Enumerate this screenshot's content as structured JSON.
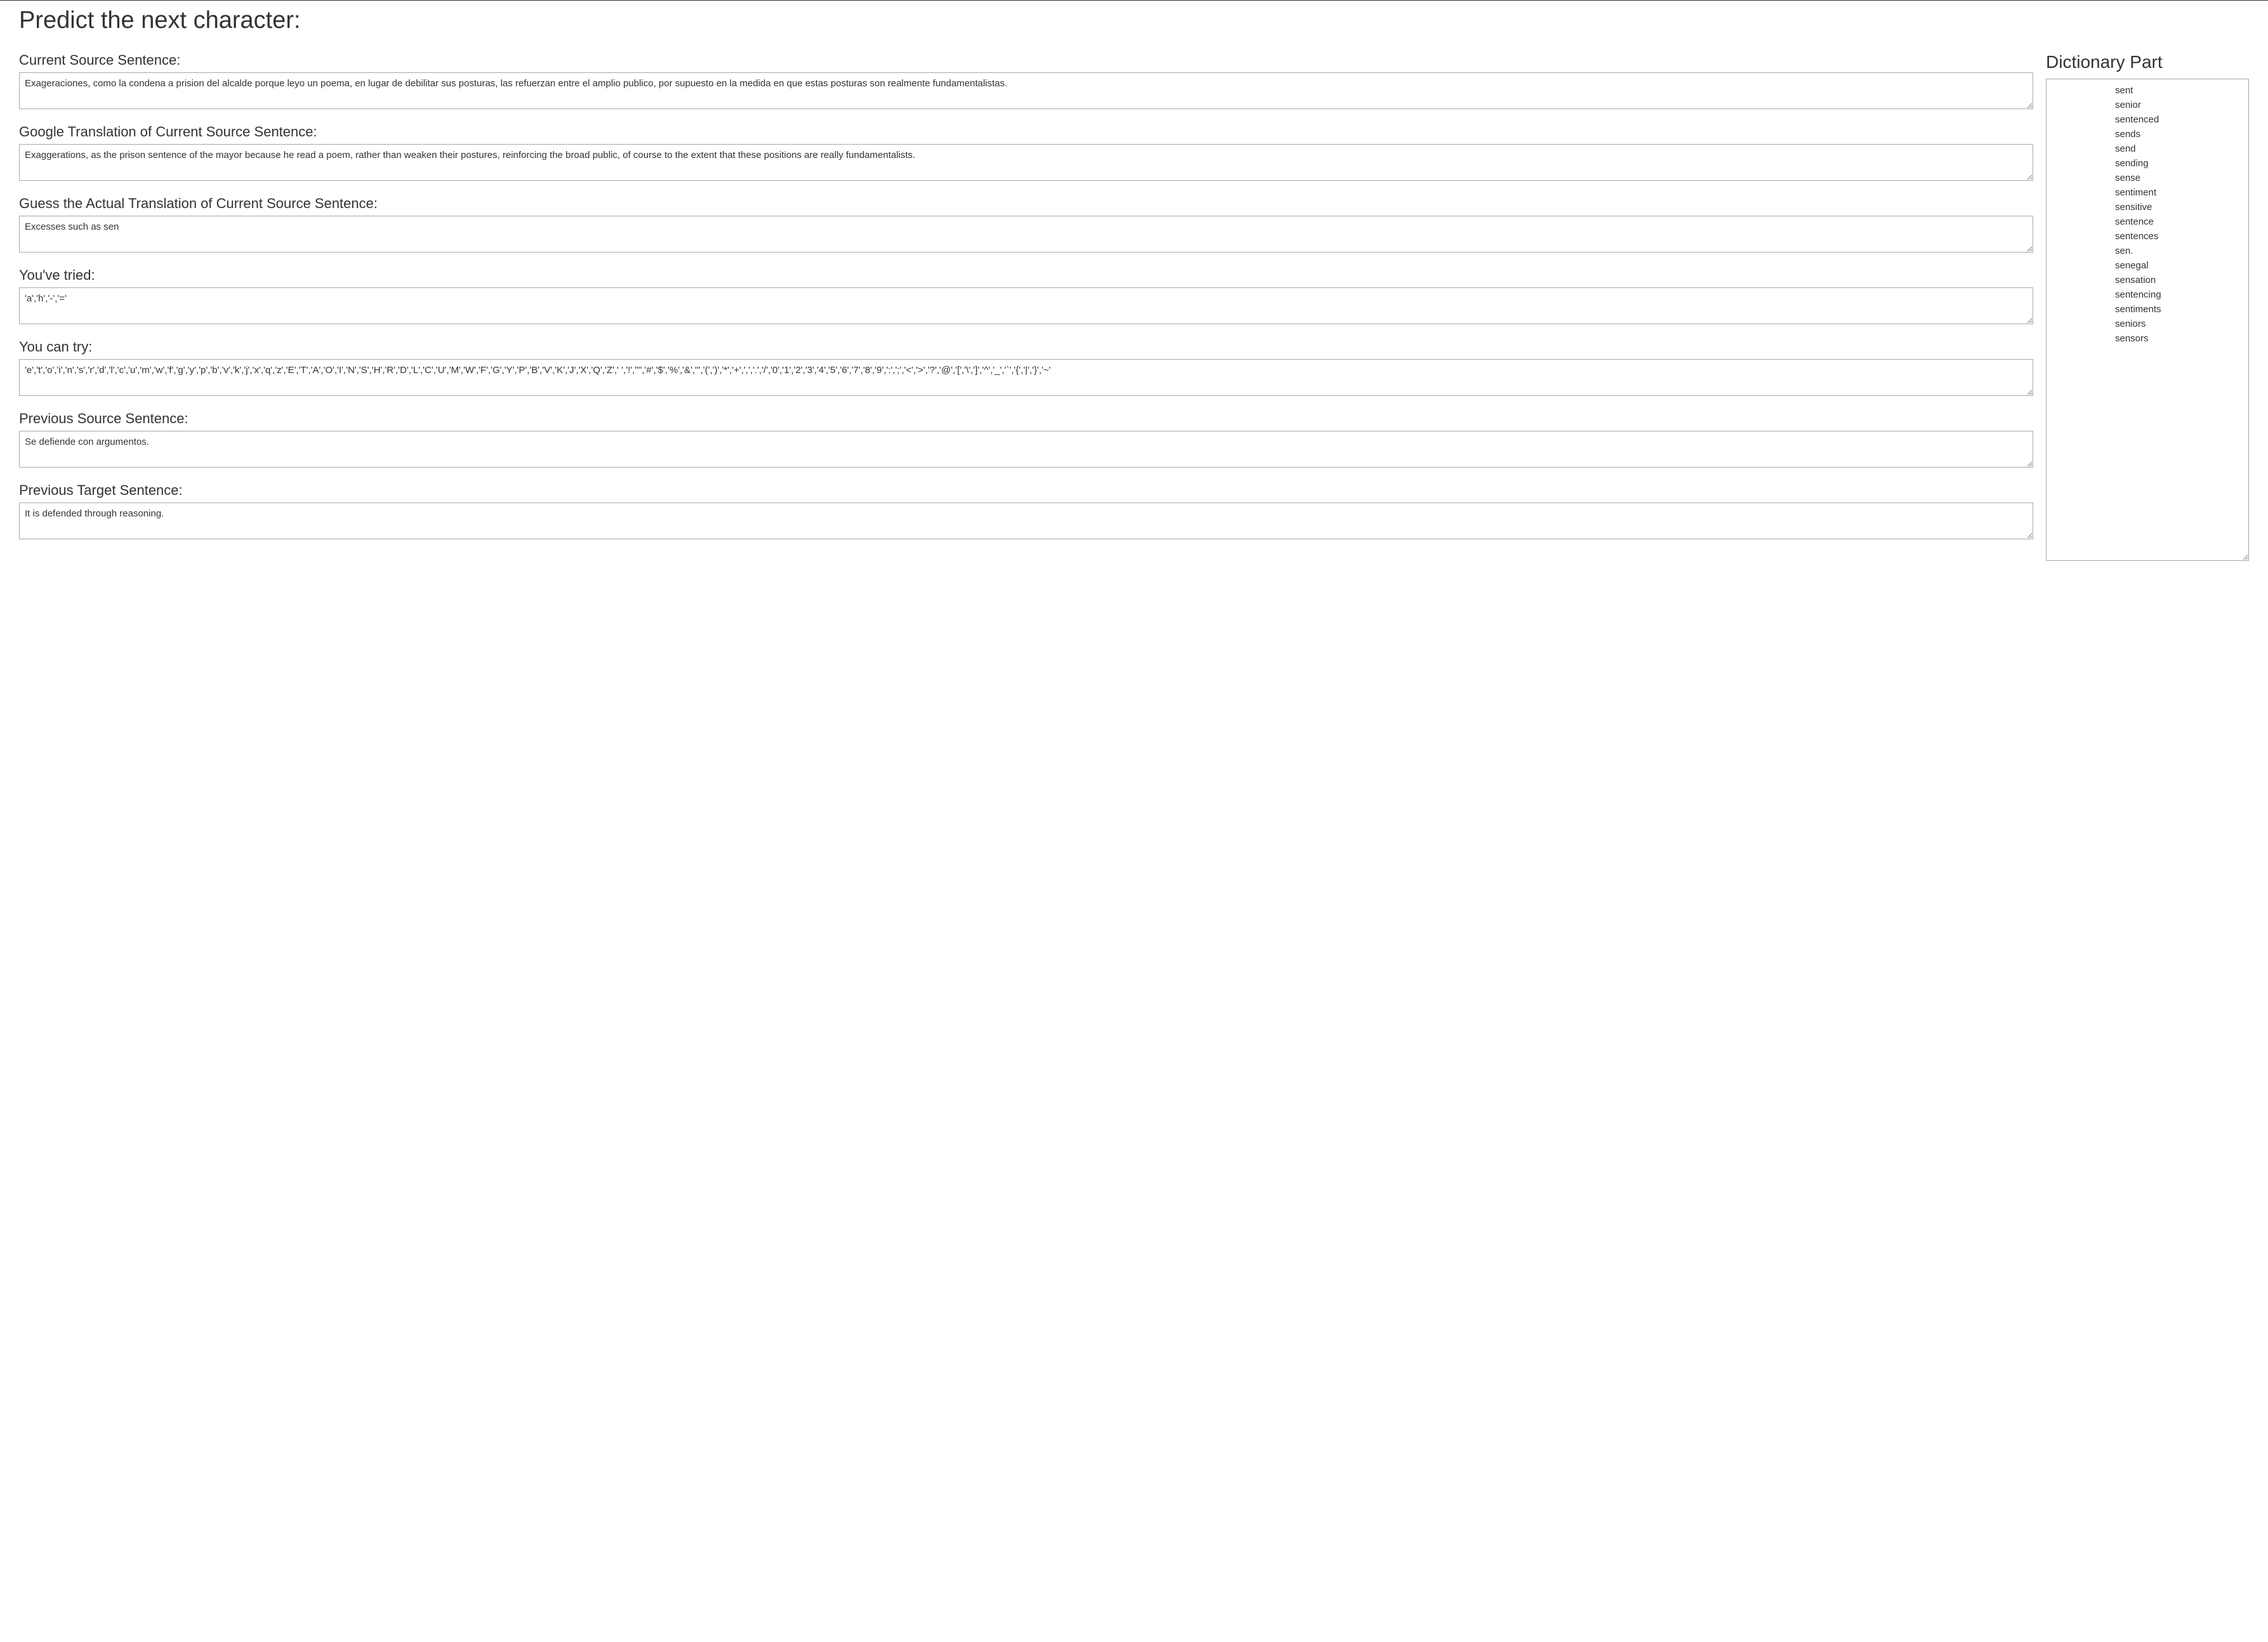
{
  "page": {
    "title": "Predict the next character:"
  },
  "sections": {
    "currentSource": {
      "label": "Current Source Sentence:",
      "value": "Exageraciones, como la condena a prision del alcalde porque leyo un poema, en lugar de debilitar sus posturas, las refuerzan entre el amplio publico, por supuesto en la medida en que estas posturas son realmente fundamentalistas."
    },
    "googleTranslation": {
      "label": "Google Translation of Current Source Sentence:",
      "value": "Exaggerations, as the prison sentence of the mayor because he read a poem, rather than weaken their postures, reinforcing the broad public, of course to the extent that these positions are really fundamentalists."
    },
    "guessTranslation": {
      "label": "Guess the Actual Translation of Current Source Sentence:",
      "value": "Excesses such as sen"
    },
    "tried": {
      "label": "You've tried:",
      "value": "'a','h','-','='"
    },
    "canTry": {
      "label": "You can try:",
      "value": "'e','t','o','i','n','s','r','d','l','c','u','m','w','f','g','y','p','b','v','k','j','x','q','z','E','T','A','O','I','N','S','H','R','D','L','C','U','M','W','F','G','Y','P','B','V','K','J','X','Q','Z',' ','!','\"','#','$','%','&',''','(',')','*','+',',','.','/','0','1','2','3','4','5','6','7','8','9',':',';','<','>','?','@','[','\\',']','^','_','`','{','|','}','~'"
    },
    "previousSource": {
      "label": "Previous Source Sentence:",
      "value": "Se defiende con argumentos."
    },
    "previousTarget": {
      "label": "Previous Target Sentence:",
      "value": "It is defended through reasoning."
    }
  },
  "dictionary": {
    "title": "Dictionary Part",
    "items": [
      "sent",
      "senior",
      "sentenced",
      "sends",
      "send",
      "sending",
      "sense",
      "sentiment",
      "sensitive",
      "sentence",
      "sentences",
      "sen.",
      "senegal",
      "sensation",
      "sentencing",
      "sentiments",
      "seniors",
      "sensors"
    ]
  },
  "styling": {
    "backgroundColor": "#ffffff",
    "textColor": "#333333",
    "borderColor": "#a9a9a9",
    "titleFontSize": 38,
    "labelFontSize": 22,
    "bodyFontSize": 15,
    "dictionaryTitleFontSize": 28
  }
}
